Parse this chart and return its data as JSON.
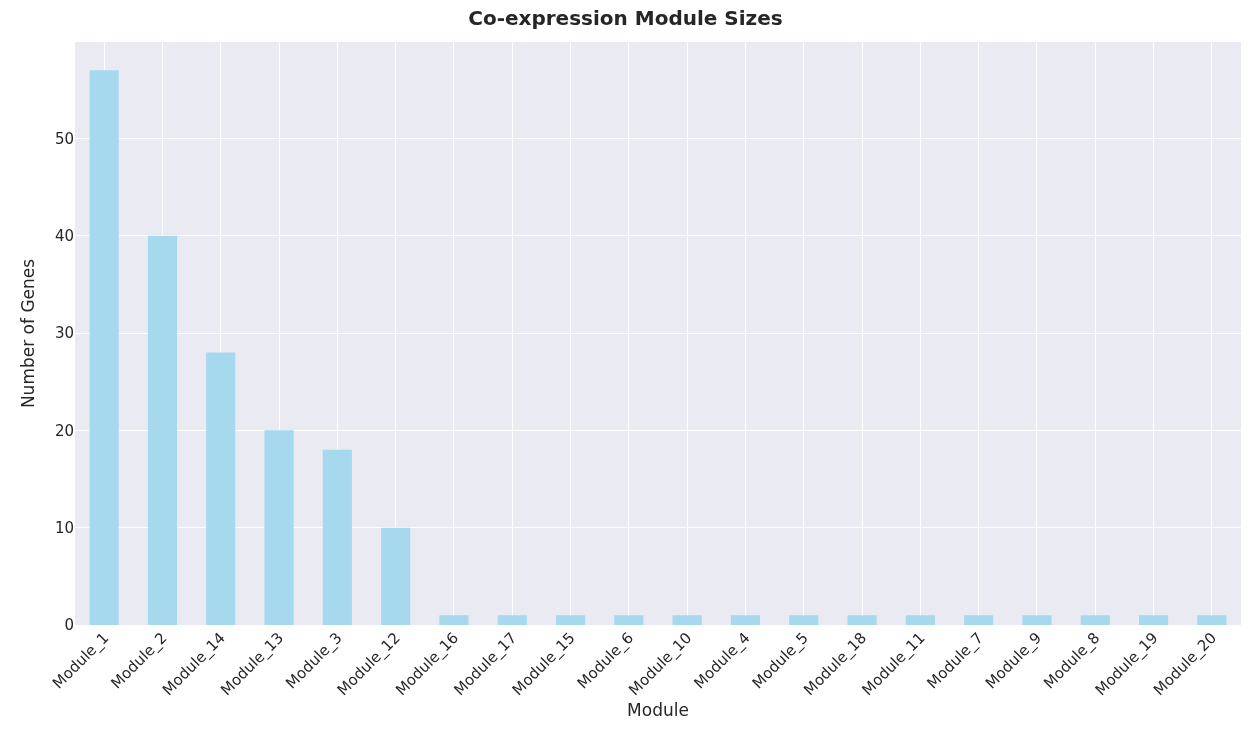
{
  "chart_data": {
    "type": "bar",
    "title": "Co-expression Module Sizes",
    "xlabel": "Module",
    "ylabel": "Number of Genes",
    "categories": [
      "Module_1",
      "Module_2",
      "Module_14",
      "Module_13",
      "Module_3",
      "Module_12",
      "Module_16",
      "Module_17",
      "Module_15",
      "Module_6",
      "Module_10",
      "Module_4",
      "Module_5",
      "Module_18",
      "Module_11",
      "Module_7",
      "Module_9",
      "Module_8",
      "Module_19",
      "Module_20"
    ],
    "values": [
      57,
      40,
      28,
      20,
      18,
      10,
      1,
      1,
      1,
      1,
      1,
      1,
      1,
      1,
      1,
      1,
      1,
      1,
      1,
      1
    ],
    "color": "#a6d8ee",
    "ylim": [
      0,
      59.9
    ],
    "yticks": [
      0,
      10,
      20,
      30,
      40,
      50
    ],
    "grid": true
  }
}
